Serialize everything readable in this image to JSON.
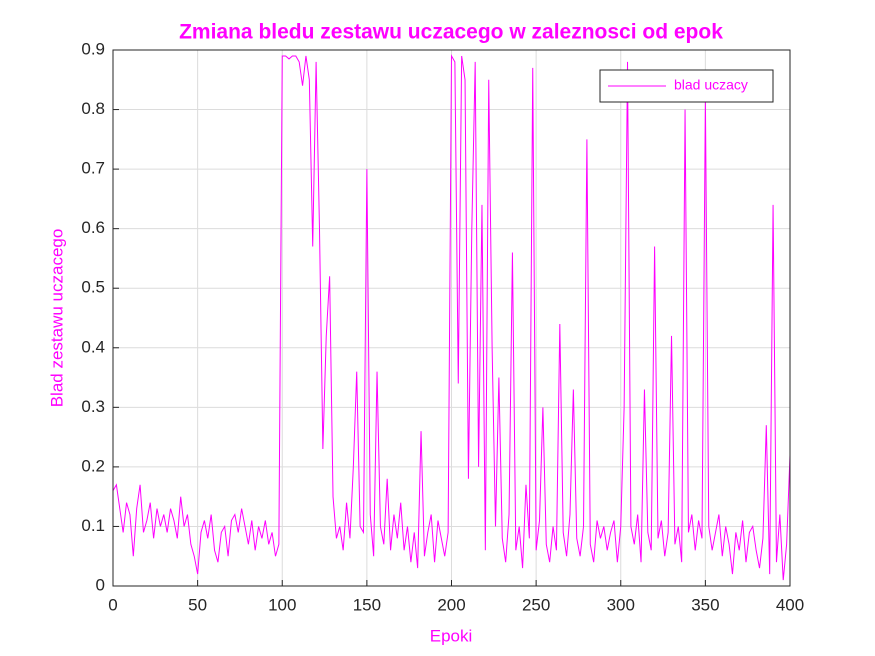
{
  "chart_data": {
    "type": "line",
    "title": "Zmiana bledu zestawu uczacego w zaleznosci od epok",
    "x_label": "Epoki",
    "y_label": "Blad zestawu uczacego",
    "x": [
      0,
      2,
      4,
      6,
      8,
      10,
      12,
      14,
      16,
      18,
      20,
      22,
      24,
      26,
      28,
      30,
      32,
      34,
      36,
      38,
      40,
      42,
      44,
      46,
      48,
      50,
      52,
      54,
      56,
      58,
      60,
      62,
      64,
      66,
      68,
      70,
      72,
      74,
      76,
      78,
      80,
      82,
      84,
      86,
      88,
      90,
      92,
      94,
      96,
      98,
      100,
      102,
      104,
      106,
      108,
      110,
      112,
      114,
      116,
      118,
      120,
      122,
      124,
      126,
      128,
      130,
      132,
      134,
      136,
      138,
      140,
      142,
      144,
      146,
      148,
      150,
      152,
      154,
      156,
      158,
      160,
      162,
      164,
      166,
      168,
      170,
      172,
      174,
      176,
      178,
      180,
      182,
      184,
      186,
      188,
      190,
      192,
      194,
      196,
      198,
      200,
      202,
      204,
      206,
      208,
      210,
      212,
      214,
      216,
      218,
      220,
      222,
      224,
      226,
      228,
      230,
      232,
      234,
      236,
      238,
      240,
      242,
      244,
      246,
      248,
      250,
      252,
      254,
      256,
      258,
      260,
      262,
      264,
      266,
      268,
      270,
      272,
      274,
      276,
      278,
      280,
      282,
      284,
      286,
      288,
      290,
      292,
      294,
      296,
      298,
      300,
      302,
      304,
      306,
      308,
      310,
      312,
      314,
      316,
      318,
      320,
      322,
      324,
      326,
      328,
      330,
      332,
      334,
      336,
      338,
      340,
      342,
      344,
      346,
      348,
      350,
      352,
      354,
      356,
      358,
      360,
      362,
      364,
      366,
      368,
      370,
      372,
      374,
      376,
      378,
      380,
      382,
      384,
      386,
      388,
      390,
      392,
      394,
      396,
      398,
      400
    ],
    "series": [
      {
        "name": "blad uczacy",
        "color": "#ff00ff",
        "values": [
          0.16,
          0.17,
          0.13,
          0.09,
          0.14,
          0.12,
          0.05,
          0.13,
          0.17,
          0.09,
          0.11,
          0.14,
          0.08,
          0.13,
          0.1,
          0.12,
          0.09,
          0.13,
          0.11,
          0.08,
          0.15,
          0.1,
          0.12,
          0.07,
          0.05,
          0.02,
          0.09,
          0.11,
          0.08,
          0.12,
          0.06,
          0.04,
          0.09,
          0.1,
          0.05,
          0.11,
          0.12,
          0.09,
          0.13,
          0.1,
          0.07,
          0.11,
          0.06,
          0.1,
          0.08,
          0.11,
          0.07,
          0.09,
          0.05,
          0.07,
          0.89,
          0.89,
          0.885,
          0.89,
          0.89,
          0.88,
          0.84,
          0.89,
          0.85,
          0.57,
          0.88,
          0.6,
          0.23,
          0.42,
          0.52,
          0.15,
          0.08,
          0.1,
          0.06,
          0.14,
          0.08,
          0.2,
          0.36,
          0.1,
          0.09,
          0.7,
          0.12,
          0.05,
          0.36,
          0.1,
          0.07,
          0.18,
          0.06,
          0.12,
          0.08,
          0.14,
          0.06,
          0.1,
          0.04,
          0.09,
          0.03,
          0.26,
          0.05,
          0.09,
          0.12,
          0.04,
          0.11,
          0.08,
          0.05,
          0.09,
          0.89,
          0.88,
          0.34,
          0.89,
          0.85,
          0.18,
          0.6,
          0.88,
          0.2,
          0.64,
          0.06,
          0.85,
          0.4,
          0.1,
          0.35,
          0.08,
          0.04,
          0.12,
          0.56,
          0.06,
          0.1,
          0.03,
          0.17,
          0.08,
          0.87,
          0.06,
          0.11,
          0.3,
          0.07,
          0.04,
          0.1,
          0.06,
          0.44,
          0.09,
          0.05,
          0.12,
          0.33,
          0.08,
          0.05,
          0.1,
          0.75,
          0.07,
          0.04,
          0.11,
          0.08,
          0.1,
          0.06,
          0.09,
          0.11,
          0.04,
          0.1,
          0.3,
          0.88,
          0.1,
          0.07,
          0.12,
          0.04,
          0.33,
          0.09,
          0.06,
          0.57,
          0.08,
          0.11,
          0.05,
          0.09,
          0.42,
          0.07,
          0.1,
          0.04,
          0.8,
          0.09,
          0.12,
          0.06,
          0.11,
          0.08,
          0.82,
          0.1,
          0.06,
          0.09,
          0.12,
          0.05,
          0.1,
          0.07,
          0.02,
          0.09,
          0.06,
          0.11,
          0.04,
          0.09,
          0.1,
          0.06,
          0.03,
          0.08,
          0.27,
          0.02,
          0.64,
          0.04,
          0.12,
          0.01,
          0.07,
          0.22
        ]
      }
    ],
    "xlim": [
      0,
      400
    ],
    "xticks": [
      0,
      50,
      100,
      150,
      200,
      250,
      300,
      350,
      400
    ],
    "ylim": [
      0,
      0.9
    ],
    "yticks": [
      0,
      0.1,
      0.2,
      0.3,
      0.4,
      0.5,
      0.6,
      0.7,
      0.8,
      0.9
    ],
    "grid": true,
    "legend": "upper right",
    "label_color": "#ff00ff"
  }
}
